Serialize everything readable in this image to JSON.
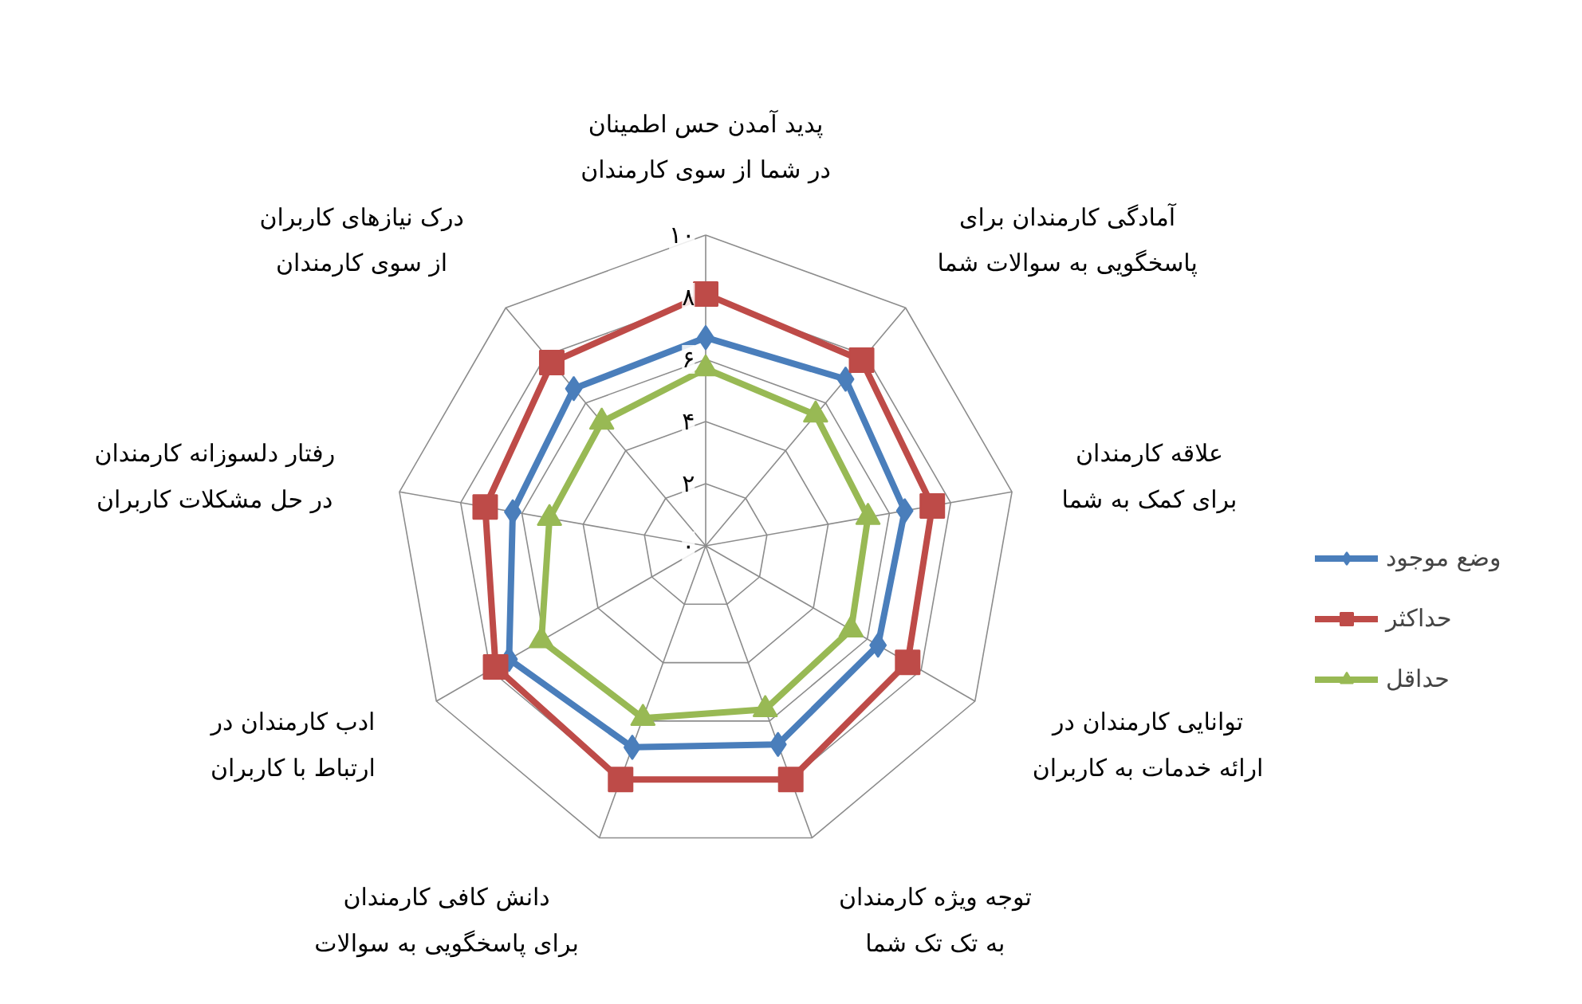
{
  "chart_data": {
    "type": "radar",
    "categories": [
      "پدید آمدن حس اطمینان در شما از سوی کارمندان",
      "آمادگی کارمندان برای پاسخگویی به سوالات شما",
      "علاقه کارمندان برای کمک به شما",
      "توانایی کارمندان در ارائه خدمات به کاربران",
      "توجه ویژه کارمندان به تک تک شما",
      "دانش کافی کارمندان برای پاسخگویی به سوالات",
      "ادب کارمندان در ارتباط با کاربران",
      "رفتار دلسوزانه کارمندان در حل مشکلات کاربران",
      "درک نیازهای کاربران از سوی کارمندان"
    ],
    "series": [
      {
        "name": "وضع موجود",
        "color": "#4a7ebb",
        "marker": "diamond",
        "values": [
          6.7,
          7.0,
          6.5,
          6.4,
          6.8,
          6.9,
          7.3,
          6.3,
          6.6
        ]
      },
      {
        "name": "حداکثر",
        "color": "#be4b48",
        "marker": "square",
        "values": [
          8.1,
          7.8,
          7.4,
          7.5,
          8.0,
          8.0,
          7.8,
          7.2,
          7.7
        ]
      },
      {
        "name": "حداقل",
        "color": "#98b954",
        "marker": "triangle",
        "values": [
          5.7,
          5.5,
          5.3,
          5.4,
          5.6,
          5.9,
          6.1,
          5.1,
          5.2
        ]
      }
    ],
    "ylim": [
      0,
      10
    ],
    "yticks": [
      {
        "value": 0,
        "label": "۰"
      },
      {
        "value": 2,
        "label": "۲"
      },
      {
        "value": 4,
        "label": "۴"
      },
      {
        "value": 6,
        "label": "۶"
      },
      {
        "value": 8,
        "label": "۸"
      },
      {
        "value": 10,
        "label": "۱۰"
      }
    ],
    "grid": true,
    "legend": "right",
    "line_style": "solid"
  }
}
